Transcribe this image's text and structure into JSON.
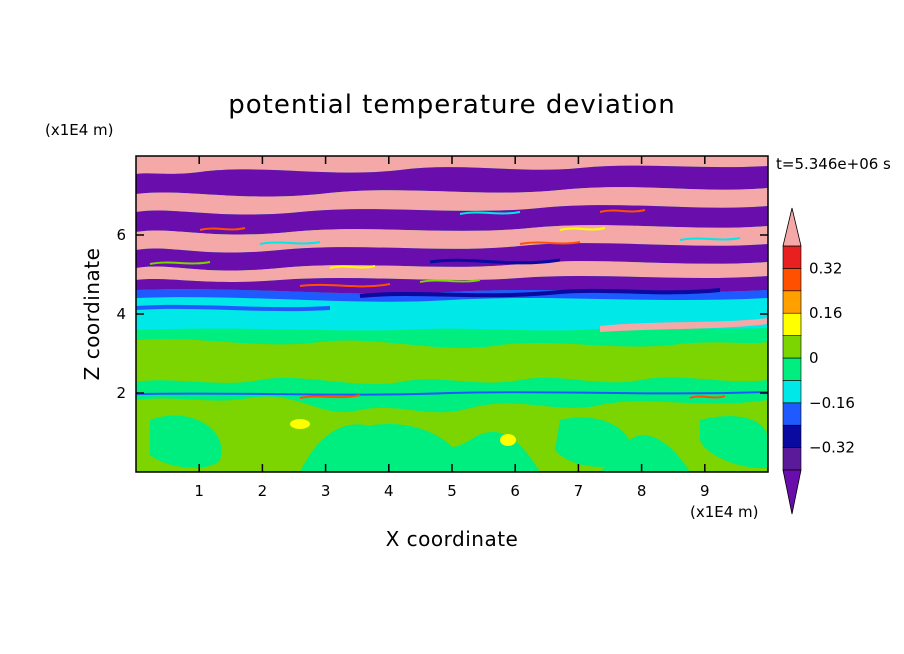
{
  "chart_data": {
    "type": "heatmap",
    "title": "potential temperature deviation",
    "xlabel": "X coordinate",
    "ylabel": "Z coordinate",
    "x_unit": "(x1E4 m)",
    "y_unit": "(x1E4 m)",
    "time_label": "t=5.346e+06 s",
    "xlim": [
      0,
      10
    ],
    "ylim": [
      0,
      8
    ],
    "xticks": [
      "1",
      "2",
      "3",
      "4",
      "5",
      "6",
      "7",
      "8",
      "9"
    ],
    "yticks": [
      "2",
      "4",
      "6"
    ],
    "colorbar": {
      "levels": [
        -0.4,
        -0.32,
        -0.24,
        -0.16,
        -0.08,
        0,
        0.08,
        0.16,
        0.24,
        0.32,
        0.4
      ],
      "labels": [
        "0.32",
        "0.16",
        "0",
        "−0.16",
        "−0.32"
      ],
      "label_values": [
        0.32,
        0.16,
        0,
        -0.16,
        -0.32
      ],
      "colors": [
        "#6a0dad",
        "#5a1a9a",
        "#0a0aa0",
        "#1e5aff",
        "#00e8e8",
        "#00ee80",
        "#7cd400",
        "#ffff00",
        "#ffa000",
        "#ff5000",
        "#e82020",
        "#f4a8a8"
      ],
      "extend": "both"
    },
    "bands": [
      {
        "z_range": [
          0,
          2.0
        ],
        "dominant": "0 to 0.08 with -0.08 to 0 patches"
      },
      {
        "z_range": [
          2.0,
          3.6
        ],
        "dominant": "-0.08 to 0.08"
      },
      {
        "z_range": [
          3.6,
          4.4
        ],
        "dominant": "-0.16 to -0.08"
      },
      {
        "z_range": [
          4.4,
          8.0
        ],
        "dominant": "alternating below -0.4 and above 0.4"
      }
    ]
  }
}
